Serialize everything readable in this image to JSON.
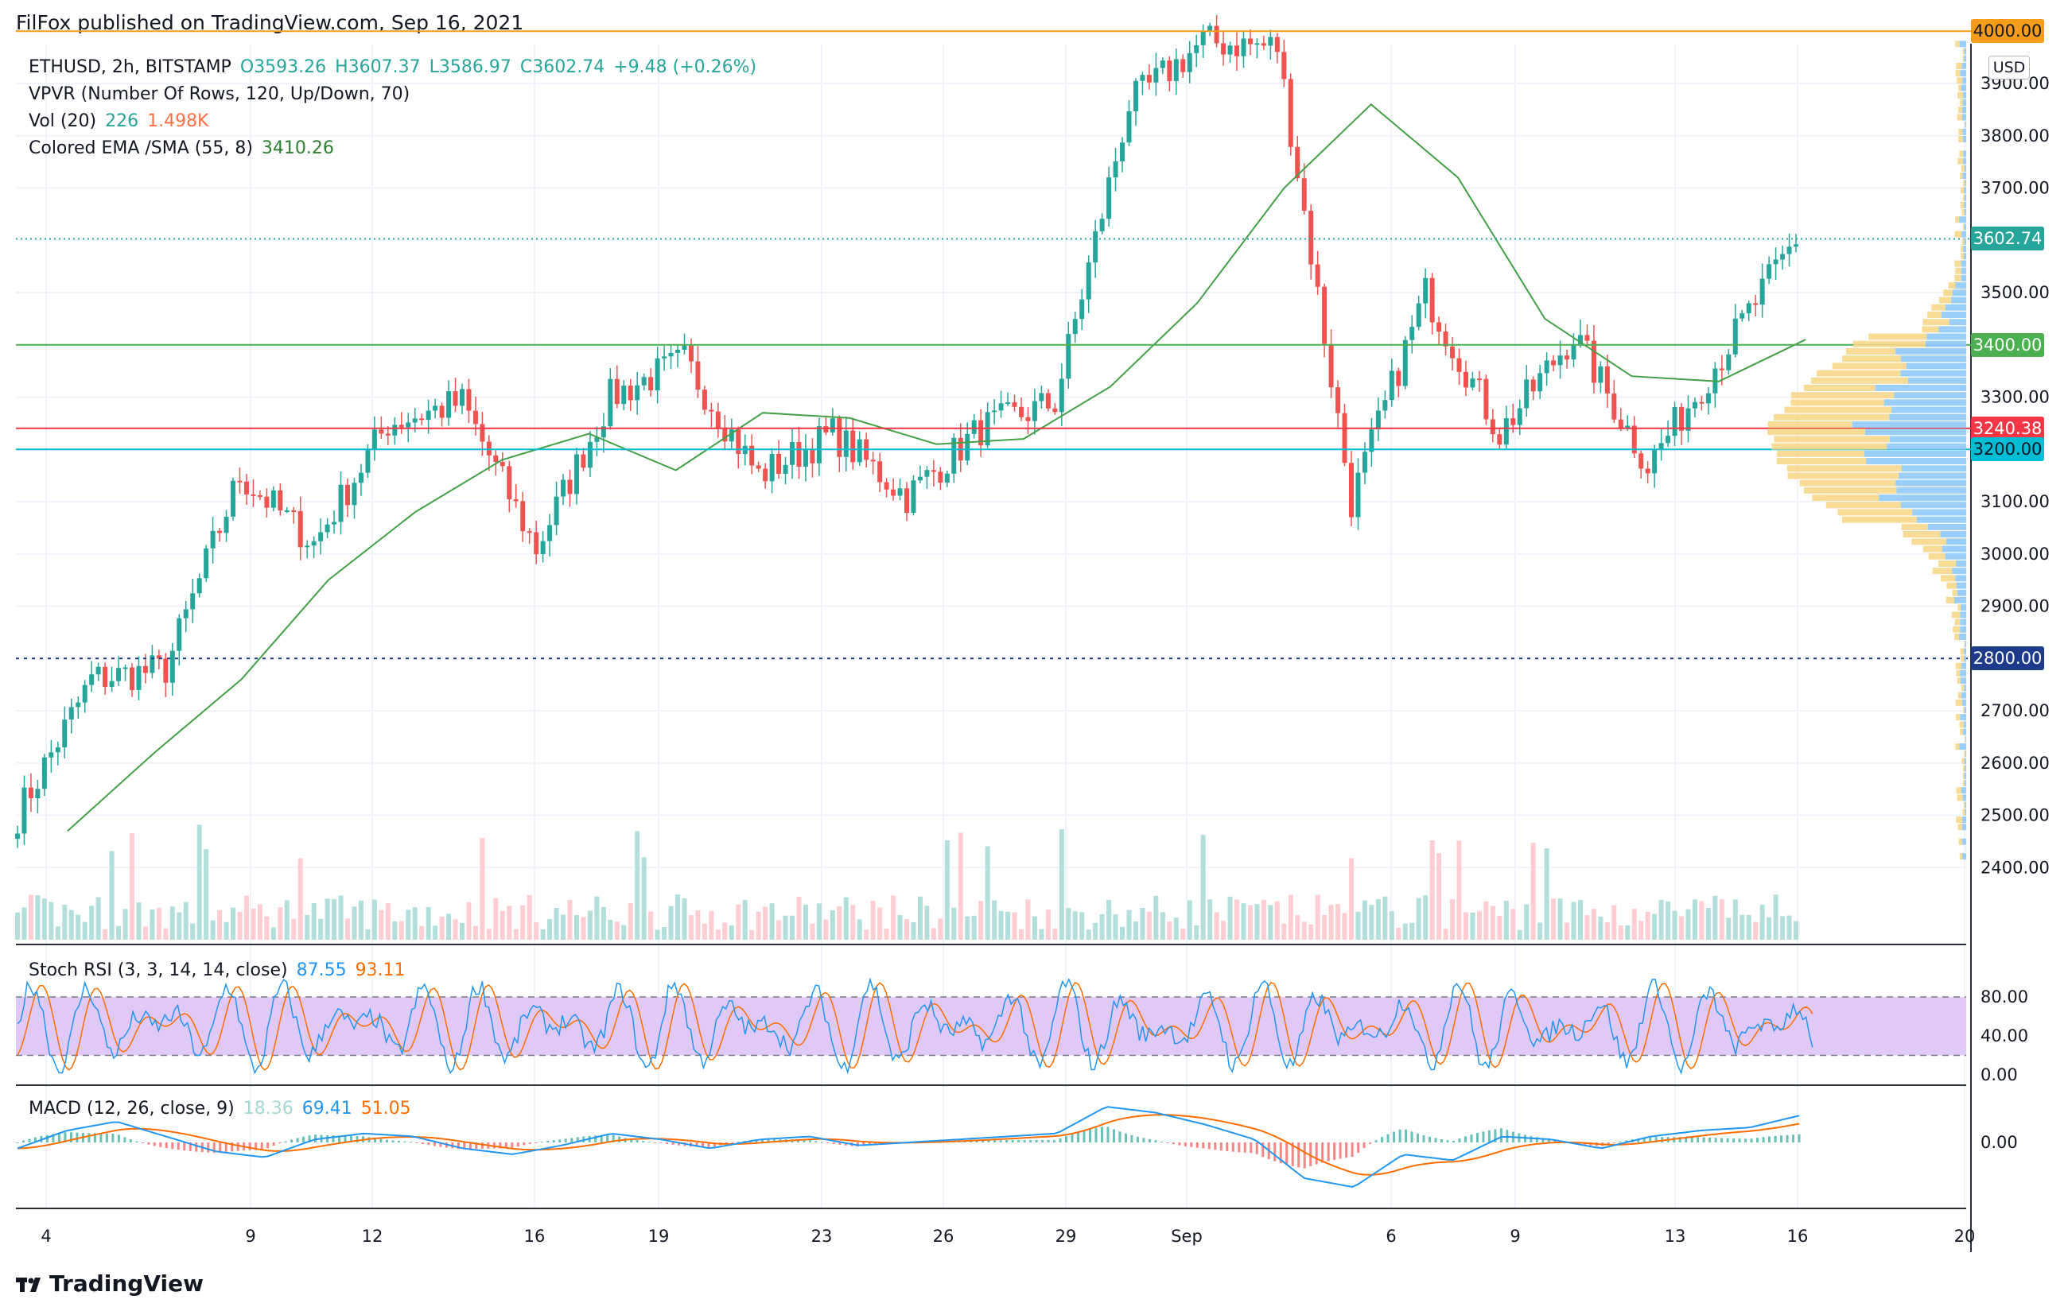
{
  "header": {
    "publisher": "FilFox published on TradingView.com, Sep 16, 2021"
  },
  "footer": {
    "brand": "TradingView"
  },
  "instrument": {
    "symbol_line": "ETHUSD, 2h, BITSTAMP",
    "open": "O3593.26",
    "high": "H3607.37",
    "low": "L3586.97",
    "close": "C3602.74",
    "change": "+9.48 (+0.26%)"
  },
  "indicators": {
    "vpvr": "VPVR (Number Of Rows, 120, Up/Down, 70)",
    "vol_label": "Vol (20)",
    "vol_value": "226",
    "vol_ma": "1.498K",
    "ema_label": "Colored EMA /SMA (55, 8)",
    "ema_value": "3410.26",
    "stoch_label": "Stoch RSI (3, 3, 14, 14, close)",
    "stoch_k": "87.55",
    "stoch_d": "93.11",
    "macd_label": "MACD (12, 26, close, 9)",
    "macd_hist": "18.36",
    "macd_line": "69.41",
    "macd_signal": "51.05"
  },
  "currency": "USD",
  "colors": {
    "up": "#26a69a",
    "down": "#ef5350",
    "orange_level": "#f59c1a",
    "green_level": "#4caf50",
    "red_level": "#f23645",
    "cyan_level": "#00bcd4",
    "navy_level": "#1e3a8a",
    "stoch_band": "#e1c9f7",
    "macd_line": "#2196f3",
    "signal_line": "#ff6d00"
  },
  "price_tags": [
    {
      "text": "4000.00",
      "value": 4000,
      "bg": "#f59c1a",
      "fg": "#131722"
    },
    {
      "text": "3602.74",
      "value": 3602.74,
      "bg": "#26a69a",
      "fg": "#ffffff"
    },
    {
      "text": "3400.00",
      "value": 3400,
      "bg": "#4caf50",
      "fg": "#ffffff"
    },
    {
      "text": "3240.38",
      "value": 3240.38,
      "bg": "#f23645",
      "fg": "#ffffff"
    },
    {
      "text": "3200.00",
      "value": 3200,
      "bg": "#00bcd4",
      "fg": "#131722"
    },
    {
      "text": "2800.00",
      "value": 2800,
      "bg": "#1e3a8a",
      "fg": "#ffffff"
    }
  ],
  "price_axis_ticks": [
    "3900.00",
    "3800.00",
    "3700.00",
    "3500.00",
    "3300.00",
    "3100.00",
    "3000.00",
    "2900.00",
    "2700.00",
    "2600.00",
    "2500.00",
    "2400.00"
  ],
  "stoch_ticks": [
    "80.00",
    "40.00",
    "0.00"
  ],
  "macd_ticks": [
    "0.00"
  ],
  "time_ticks": [
    "4",
    "9",
    "12",
    "16",
    "19",
    "23",
    "26",
    "29",
    "Sep",
    "6",
    "9",
    "13",
    "16",
    "20"
  ],
  "chart_data": {
    "type": "candlestick",
    "symbol": "ETHUSD",
    "interval": "2h",
    "x": [
      "Sep 4",
      "Sep 9",
      "Sep 12",
      "Sep 16",
      "Sep 19",
      "Sep 23",
      "Sep 26",
      "Sep 29",
      "Sep 1",
      "Sep 6",
      "Sep 9",
      "Sep 13",
      "Sep 16"
    ],
    "close_path": [
      2500,
      2760,
      2780,
      3150,
      3020,
      3250,
      3290,
      3010,
      3300,
      3370,
      3150,
      3230,
      3110,
      3240,
      3290,
      3860,
      3980,
      3970,
      3100,
      3500,
      3230,
      3420,
      3170,
      3380,
      3603
    ],
    "ema_path": [
      2470,
      2620,
      2760,
      2950,
      3080,
      3180,
      3230,
      3160,
      3270,
      3260,
      3210,
      3220,
      3320,
      3480,
      3700,
      3860,
      3720,
      3450,
      3340,
      3330,
      3410
    ],
    "levels": [
      4000,
      3602.74,
      3400,
      3240.38,
      3200,
      2800
    ],
    "ylim": [
      2350,
      4030
    ]
  }
}
